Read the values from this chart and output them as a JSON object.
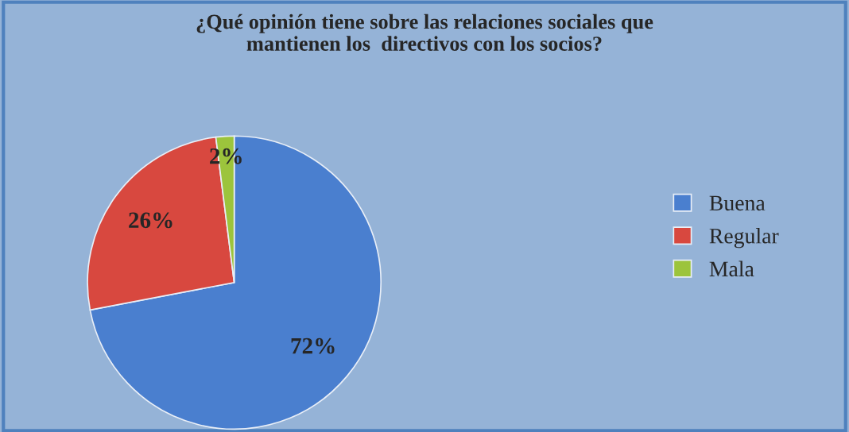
{
  "chart_data": {
    "type": "pie",
    "title": "¿Qué opinión tiene sobre las relaciones sociales que\nmantienen los  directivos con los socios?",
    "categories": [
      "Buena",
      "Regular",
      "Mala"
    ],
    "values": [
      72,
      26,
      2
    ],
    "colors": [
      "#4a7fcf",
      "#d8483f",
      "#9cc43c"
    ],
    "value_labels": [
      "72%",
      "26%",
      "2%"
    ],
    "legend": "right"
  }
}
